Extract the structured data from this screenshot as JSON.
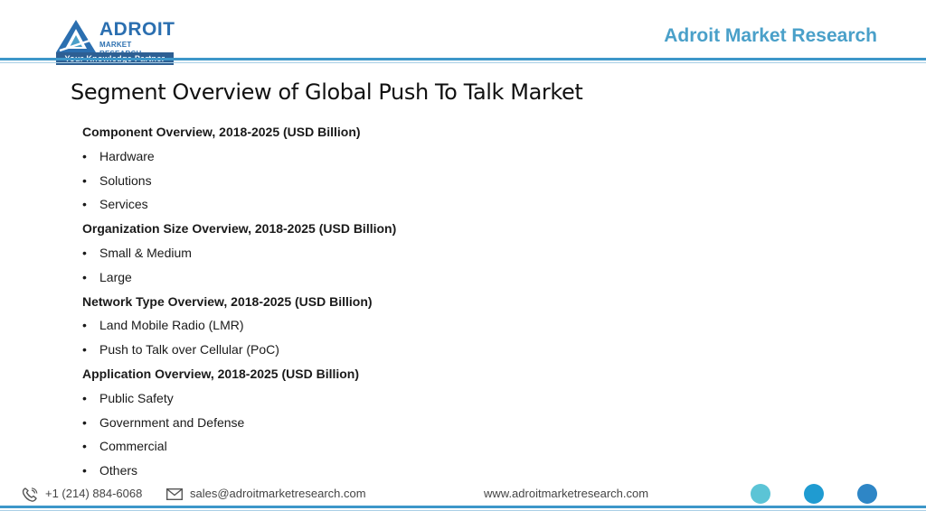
{
  "header": {
    "logo": {
      "brand": "ADROIT",
      "sub": "MARKET RESEARCH",
      "tagline": "Your Knowledge Partner"
    },
    "brand_text": "Adroit Market Research"
  },
  "page": {
    "title": "Segment Overview of Global Push To Talk Market"
  },
  "segments": [
    {
      "heading": "Component Overview, 2018-2025 (USD Billion)",
      "items": [
        "Hardware",
        "Solutions",
        "Services"
      ]
    },
    {
      "heading": "Organization Size Overview, 2018-2025 (USD Billion)",
      "items": [
        "Small & Medium",
        "Large"
      ]
    },
    {
      "heading": "Network Type Overview, 2018-2025 (USD Billion)",
      "items": [
        "Land Mobile Radio (LMR)",
        "Push to Talk over Cellular (PoC)"
      ]
    },
    {
      "heading": "Application Overview, 2018-2025 (USD Billion)",
      "items": [
        "Public Safety",
        "Government and Defense",
        "Commercial",
        "Others"
      ]
    }
  ],
  "bullet": "•",
  "footer": {
    "phone": "+1 (214) 884-6068",
    "email": "sales@adroitmarketresearch.com",
    "website": "www.adroitmarketresearch.com",
    "dot_colors": [
      "#5bc4d6",
      "#1f9bd1",
      "#2e86c6"
    ]
  },
  "colors": {
    "accent": "#3d97c9",
    "brand": "#2b6fb0"
  },
  "icons": [
    "phone-icon",
    "mail-icon"
  ]
}
